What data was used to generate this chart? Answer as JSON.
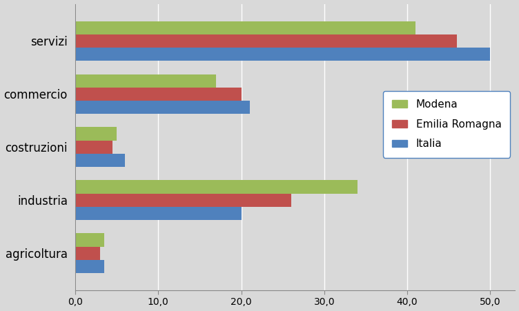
{
  "categories": [
    "servizi",
    "commercio",
    "costruzioni",
    "industria",
    "agricoltura"
  ],
  "series": {
    "Modena": [
      41.0,
      17.0,
      5.0,
      34.0,
      3.5
    ],
    "Emilia Romagna": [
      46.0,
      20.0,
      4.5,
      26.0,
      3.0
    ],
    "Italia": [
      50.0,
      21.0,
      6.0,
      20.0,
      3.5
    ]
  },
  "colors": {
    "Modena": "#9BBB59",
    "Emilia Romagna": "#C0504D",
    "Italia": "#4F81BD"
  },
  "xlim": [
    0,
    53
  ],
  "xticks": [
    0,
    10,
    20,
    30,
    40,
    50
  ],
  "xticklabels": [
    "0,0",
    "10,0",
    "20,0",
    "30,0",
    "40,0",
    "50,0"
  ],
  "bar_height": 0.25,
  "background_color": "#D9D9D9",
  "plot_background_color": "#D9D9D9",
  "grid_color": "#FFFFFF"
}
